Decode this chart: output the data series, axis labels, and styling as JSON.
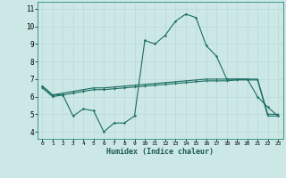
{
  "xlabel": "Humidex (Indice chaleur)",
  "background_color": "#cce8e6",
  "grid_color": "#b8d8d6",
  "line_color": "#1a6b60",
  "x_ticks": [
    0,
    1,
    2,
    3,
    4,
    5,
    6,
    7,
    8,
    9,
    10,
    11,
    12,
    13,
    14,
    15,
    16,
    17,
    18,
    19,
    20,
    21,
    22,
    23
  ],
  "y_ticks": [
    4,
    5,
    6,
    7,
    8,
    9,
    10,
    11
  ],
  "ylim": [
    3.6,
    11.4
  ],
  "xlim": [
    -0.5,
    23.5
  ],
  "line1_x": [
    0,
    1,
    2,
    3,
    4,
    5,
    6,
    7,
    8,
    9,
    10,
    11,
    12,
    13,
    14,
    15,
    16,
    17,
    18,
    19,
    20,
    21,
    22,
    23
  ],
  "line1_y": [
    6.6,
    6.1,
    6.1,
    4.9,
    5.3,
    5.2,
    4.0,
    4.5,
    4.5,
    4.9,
    9.2,
    9.0,
    9.5,
    10.3,
    10.7,
    10.5,
    8.9,
    8.3,
    7.0,
    7.0,
    7.0,
    6.0,
    5.4,
    4.9
  ],
  "line2_x": [
    0,
    1,
    2,
    3,
    4,
    5,
    6,
    7,
    8,
    9,
    10,
    11,
    12,
    13,
    14,
    15,
    16,
    17,
    18,
    19,
    20,
    21,
    22,
    23
  ],
  "line2_y": [
    6.6,
    6.1,
    6.2,
    6.3,
    6.4,
    6.5,
    6.5,
    6.55,
    6.6,
    6.65,
    6.7,
    6.75,
    6.8,
    6.85,
    6.9,
    6.95,
    7.0,
    7.0,
    7.0,
    7.0,
    7.0,
    7.0,
    5.0,
    5.0
  ],
  "line3_x": [
    0,
    1,
    2,
    3,
    4,
    5,
    6,
    7,
    8,
    9,
    10,
    11,
    12,
    13,
    14,
    15,
    16,
    17,
    18,
    19,
    20,
    21,
    22,
    23
  ],
  "line3_y": [
    6.5,
    6.0,
    6.1,
    6.2,
    6.3,
    6.4,
    6.4,
    6.45,
    6.5,
    6.55,
    6.6,
    6.65,
    6.7,
    6.75,
    6.8,
    6.85,
    6.9,
    6.9,
    6.9,
    6.95,
    6.95,
    6.95,
    4.9,
    4.9
  ]
}
